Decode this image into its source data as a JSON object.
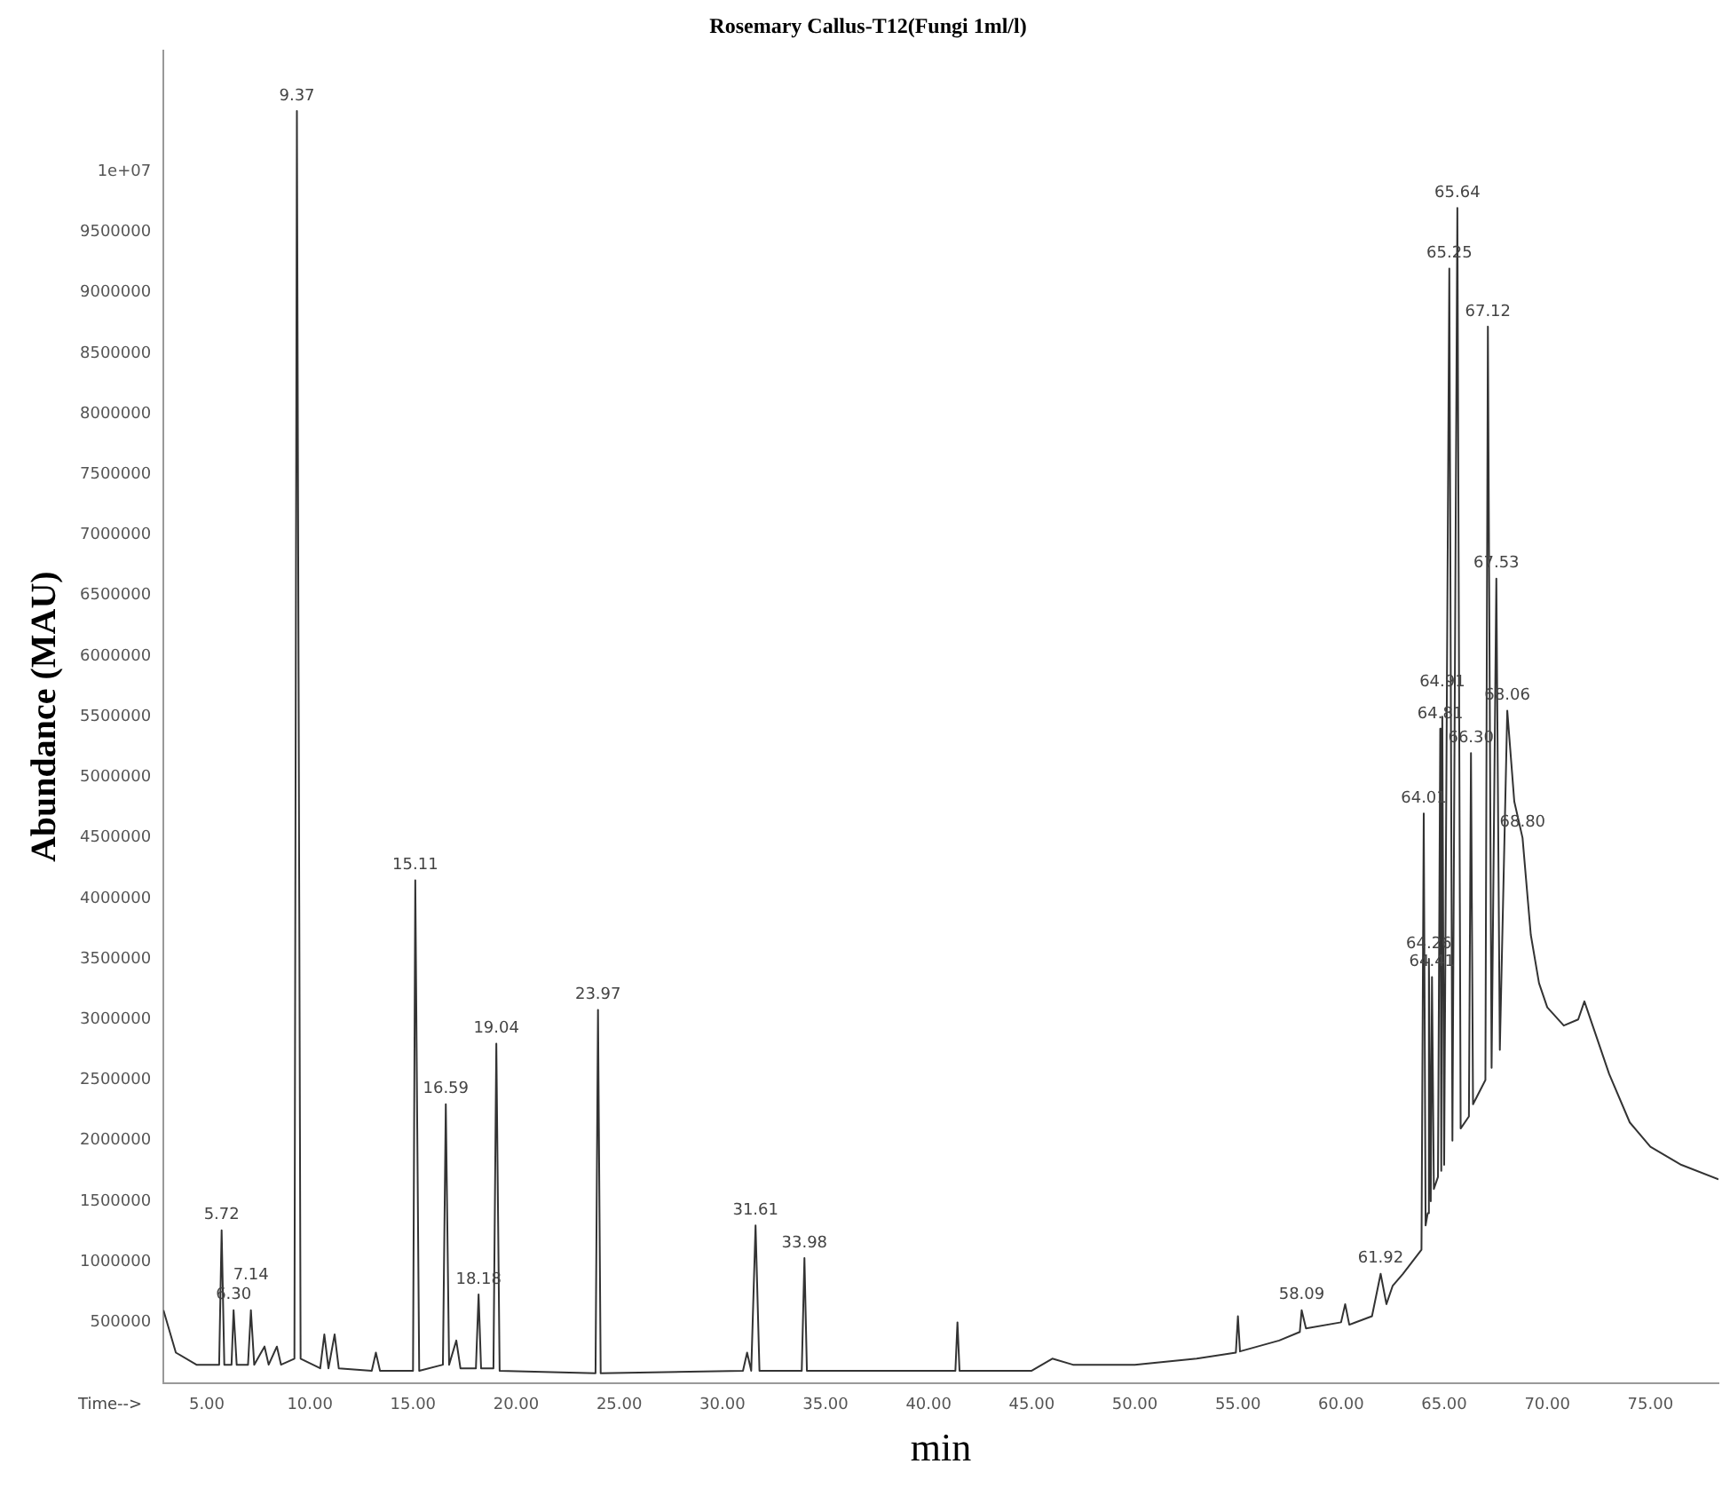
{
  "chart_data": {
    "type": "line",
    "title": "Rosemary Callus-T12(Fungi 1ml/l)",
    "xlabel": "min",
    "ylabel": "Abundance (MAU)",
    "color": "#333333",
    "x": [
      2.9,
      3.5,
      4.5,
      5.6,
      5.72,
      5.85,
      6.2,
      6.3,
      6.45,
      7.0,
      7.14,
      7.3,
      7.8,
      8.0,
      8.4,
      8.6,
      9.25,
      9.37,
      9.55,
      10.5,
      10.7,
      10.9,
      11.2,
      11.4,
      13.0,
      13.2,
      13.4,
      15.0,
      15.11,
      15.3,
      16.45,
      16.59,
      16.75,
      17.1,
      17.3,
      18.05,
      18.18,
      18.3,
      18.9,
      19.04,
      19.2,
      23.85,
      23.97,
      24.1,
      31.0,
      31.2,
      31.4,
      31.61,
      31.8,
      33.85,
      33.98,
      34.1,
      40.0,
      41.3,
      41.4,
      41.5,
      45,
      46,
      47,
      50,
      53,
      54.9,
      55.0,
      55.1,
      57,
      58.0,
      58.09,
      58.3,
      60,
      60.2,
      60.4,
      61.5,
      61.92,
      62.2,
      62.5,
      63.0,
      63.9,
      64.01,
      64.1,
      64.2,
      64.26,
      64.35,
      64.41,
      64.5,
      64.7,
      64.81,
      64.86,
      64.91,
      65.0,
      65.25,
      65.4,
      65.64,
      65.8,
      66.2,
      66.3,
      66.4,
      67.0,
      67.12,
      67.3,
      67.53,
      67.7,
      68.06,
      68.4,
      68.8,
      69.2,
      69.6,
      70.0,
      70.8,
      71.5,
      71.8,
      72.2,
      73,
      74,
      75,
      76.5,
      78.3
    ],
    "values": [
      600000,
      250000,
      150000,
      150000,
      1260000,
      150000,
      150000,
      600000,
      150000,
      150000,
      600000,
      150000,
      300000,
      150000,
      300000,
      150000,
      200000,
      10500000,
      200000,
      120000,
      400000,
      120000,
      400000,
      120000,
      100000,
      250000,
      100000,
      100000,
      4150000,
      100000,
      150000,
      2300000,
      150000,
      350000,
      120000,
      120000,
      730000,
      120000,
      120000,
      2800000,
      100000,
      80000,
      3080000,
      80000,
      100000,
      250000,
      100000,
      1300000,
      100000,
      100000,
      1030000,
      100000,
      100000,
      100000,
      500000,
      100000,
      100000,
      200000,
      150000,
      150000,
      200000,
      250000,
      550000,
      260000,
      350000,
      420000,
      600000,
      450000,
      500000,
      650000,
      480000,
      550000,
      900000,
      650000,
      800000,
      900000,
      1100000,
      4700000,
      1300000,
      1400000,
      3500000,
      1500000,
      3350000,
      1600000,
      1700000,
      5400000,
      1750000,
      5500000,
      1800000,
      9200000,
      2000000,
      9700000,
      2100000,
      2200000,
      5200000,
      2300000,
      2500000,
      8720000,
      2600000,
      6640000,
      2750000,
      5550000,
      4800000,
      4500000,
      3700000,
      3300000,
      3100000,
      2950000,
      3000000,
      3150000,
      2950000,
      2550000,
      2150000,
      1950000,
      1800000,
      1680000
    ],
    "xlim": [
      2.9,
      78.3
    ],
    "xticks": [
      {
        "value": 5,
        "label": "5.00"
      },
      {
        "value": 10,
        "label": "10.00"
      },
      {
        "value": 15,
        "label": "15.00"
      },
      {
        "value": 20,
        "label": "20.00"
      },
      {
        "value": 25,
        "label": "25.00"
      },
      {
        "value": 30,
        "label": "30.00"
      },
      {
        "value": 35,
        "label": "35.00"
      },
      {
        "value": 40,
        "label": "40.00"
      },
      {
        "value": 45,
        "label": "45.00"
      },
      {
        "value": 50,
        "label": "50.00"
      },
      {
        "value": 55,
        "label": "55.00"
      },
      {
        "value": 60,
        "label": "60.00"
      },
      {
        "value": 65,
        "label": "65.00"
      },
      {
        "value": 70,
        "label": "70.00"
      },
      {
        "value": 75,
        "label": "75.00"
      }
    ],
    "ylim": [
      0,
      11000000
    ],
    "yticks": [
      500000,
      1000000,
      1500000,
      2000000,
      2500000,
      3000000,
      3500000,
      4000000,
      4500000,
      5000000,
      5500000,
      6000000,
      6500000,
      7000000,
      7500000,
      8000000,
      8500000,
      9000000,
      9500000,
      {
        "value": 10000000,
        "label": "1e+07"
      }
    ],
    "annotations": [
      "Time-->",
      {
        "text": "5.72",
        "x": 5.72,
        "y": 1260000
      },
      {
        "text": "6.30",
        "x": 6.3,
        "y": 600000
      },
      {
        "text": "7.14",
        "x": 7.14,
        "y": 600000
      },
      {
        "text": "9.37",
        "x": 9.37,
        "y": 10500000
      },
      {
        "text": "15.11",
        "x": 15.11,
        "y": 4150000
      },
      {
        "text": "16.59",
        "x": 16.59,
        "y": 2300000
      },
      {
        "text": "18.18",
        "x": 18.18,
        "y": 730000
      },
      {
        "text": "19.04",
        "x": 19.04,
        "y": 2800000
      },
      {
        "text": "23.97",
        "x": 23.97,
        "y": 3080000
      },
      {
        "text": "31.61",
        "x": 31.61,
        "y": 1300000
      },
      {
        "text": "33.98",
        "x": 33.98,
        "y": 1030000
      },
      {
        "text": "58.09",
        "x": 58.09,
        "y": 600000
      },
      {
        "text": "61.92",
        "x": 61.92,
        "y": 900000
      },
      {
        "text": "64.01",
        "x": 64.01,
        "y": 4700000
      },
      {
        "text": "64.26",
        "x": 64.26,
        "y": 3500000
      },
      {
        "text": "64.41",
        "x": 64.41,
        "y": 3350000
      },
      {
        "text": "64.81",
        "x": 64.81,
        "y": 5400000
      },
      {
        "text": "64.91",
        "x": 64.91,
        "y": 5500000
      },
      {
        "text": "65.25",
        "x": 65.25,
        "y": 9200000
      },
      {
        "text": "65.64",
        "x": 65.64,
        "y": 9700000
      },
      {
        "text": "66.30",
        "x": 66.3,
        "y": 5200000
      },
      {
        "text": "67.12",
        "x": 67.12,
        "y": 8720000
      },
      {
        "text": "67.53",
        "x": 67.53,
        "y": 6640000
      },
      {
        "text": "68.06",
        "x": 68.06,
        "y": 5550000
      },
      {
        "text": "68.80",
        "x": 68.8,
        "y": 4500000
      }
    ]
  }
}
